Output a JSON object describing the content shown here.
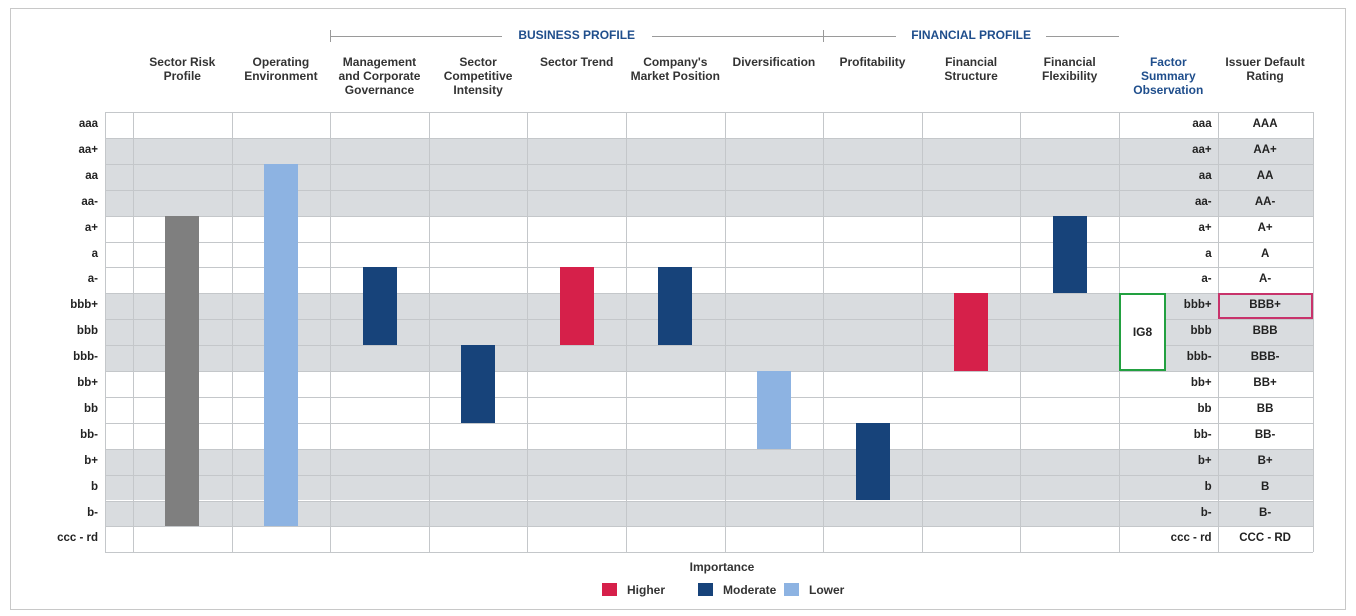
{
  "groups": [
    {
      "label": "BUSINESS PROFILE",
      "first": 2,
      "last": 6
    },
    {
      "label": "FINANCIAL PROFILE",
      "first": 7,
      "last": 9
    }
  ],
  "rows": [
    "aaa",
    "aa+",
    "aa",
    "aa-",
    "a+",
    "a",
    "a-",
    "bbb+",
    "bbb",
    "bbb-",
    "bb+",
    "bb",
    "bb-",
    "b+",
    "b",
    "b-",
    "ccc - rd"
  ],
  "columns": [
    {
      "label": "Sector Risk Profile",
      "high": "a+",
      "low": "b-",
      "color": "#7f7f7f"
    },
    {
      "label": "Operating Environment",
      "high": "aa",
      "low": "b-",
      "color": "#8db3e2"
    },
    {
      "label": "Management and Corporate Governance",
      "high": "a-",
      "low": "bbb",
      "color": "#17437a"
    },
    {
      "label": "Sector Competitive Intensity",
      "high": "bbb-",
      "low": "bb",
      "color": "#17437a"
    },
    {
      "label": "Sector Trend",
      "high": "a-",
      "low": "bbb",
      "color": "#d6204a"
    },
    {
      "label": "Company's Market Position",
      "high": "a-",
      "low": "bbb",
      "color": "#17437a"
    },
    {
      "label": "Diversification",
      "high": "bb+",
      "low": "bb-",
      "color": "#8db3e2"
    },
    {
      "label": "Profitability",
      "high": "bb-",
      "low": "b",
      "color": "#17437a"
    },
    {
      "label": "Financial Structure",
      "high": "bbb+",
      "low": "bbb-",
      "color": "#d6204a"
    },
    {
      "label": "Financial Flexibility",
      "high": "a+",
      "low": "a-",
      "color": "#17437a"
    }
  ],
  "factor_summary": {
    "label": "Factor Summary Observation",
    "text": "IG8",
    "high": "bbb+",
    "low": "bbb-",
    "color": "#22a040"
  },
  "issuer": {
    "label": "Issuer Default Rating",
    "ratings": [
      "AAA",
      "AA+",
      "AA",
      "AA-",
      "A+",
      "A",
      "A-",
      "BBB+",
      "BBB",
      "BBB-",
      "BB+",
      "BB",
      "BB-",
      "B+",
      "B",
      "B-",
      "CCC - RD"
    ],
    "highlight": "BBB+",
    "color": "#c8336b"
  },
  "legend": {
    "title": "Importance",
    "items": [
      {
        "name": "Higher",
        "color": "#d6204a"
      },
      {
        "name": "Moderate",
        "color": "#17437a"
      },
      {
        "name": "Lower",
        "color": "#8db3e2"
      }
    ]
  }
}
